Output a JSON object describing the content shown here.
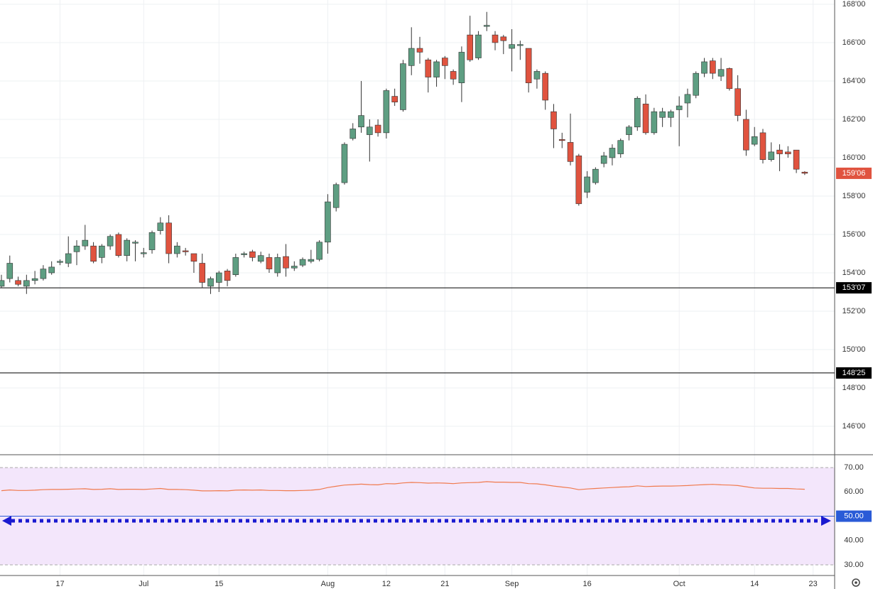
{
  "chart_data": [
    {
      "type": "candlestick",
      "categories": [
        null,
        null,
        null,
        null,
        null,
        null,
        null,
        "17",
        null,
        null,
        null,
        null,
        null,
        null,
        null,
        null,
        null,
        "Jul",
        null,
        null,
        null,
        null,
        null,
        null,
        null,
        null,
        "15",
        null,
        null,
        null,
        null,
        null,
        null,
        null,
        null,
        null,
        null,
        null,
        null,
        "Aug",
        null,
        null,
        null,
        null,
        null,
        null,
        "12",
        null,
        null,
        null,
        null,
        null,
        null,
        "21",
        null,
        null,
        null,
        null,
        null,
        null,
        null,
        "Sep",
        null,
        null,
        null,
        null,
        null,
        null,
        null,
        null,
        "16",
        null,
        null,
        null,
        null,
        null,
        null,
        null,
        null,
        null,
        null,
        "Oct",
        null,
        null,
        null,
        null,
        null,
        null,
        null,
        null,
        "14",
        null,
        null,
        null,
        null,
        null,
        null,
        "23"
      ],
      "open": [
        153.3,
        153.7,
        153.6,
        153.3,
        153.6,
        153.7,
        154.0,
        154.55,
        154.5,
        155.1,
        155.4,
        155.4,
        154.8,
        155.4,
        156.0,
        154.9,
        155.6,
        155.0,
        155.2,
        156.2,
        156.6,
        155.0,
        155.15,
        155.0,
        154.5,
        153.3,
        153.5,
        154.1,
        153.9,
        155.0,
        155.1,
        154.6,
        154.8,
        154.0,
        154.85,
        154.25,
        154.4,
        154.6,
        154.7,
        155.6,
        157.4,
        158.7,
        161.0,
        161.6,
        161.2,
        161.7,
        161.3,
        163.2,
        162.5,
        164.8,
        165.7,
        165.1,
        164.2,
        165.2,
        164.5,
        163.9,
        166.4,
        165.2,
        166.9,
        166.4,
        166.3,
        165.7,
        165.85,
        165.7,
        164.1,
        164.4,
        162.4,
        160.95,
        160.8,
        160.1,
        158.2,
        158.7,
        159.7,
        160.0,
        160.2,
        161.2,
        161.6,
        162.8,
        161.3,
        162.1,
        162.1,
        162.5,
        162.85,
        163.25,
        164.4,
        165.05,
        164.25,
        164.65,
        163.6,
        162.0,
        160.7,
        161.3,
        159.9,
        160.4,
        160.3,
        160.4,
        159.25,
        null
      ],
      "high": [
        153.9,
        154.9,
        153.8,
        153.9,
        154.1,
        154.4,
        154.6,
        154.7,
        155.9,
        155.7,
        156.5,
        155.6,
        155.5,
        156.0,
        156.1,
        155.8,
        155.7,
        155.3,
        156.2,
        156.9,
        157.0,
        155.6,
        155.3,
        155.0,
        155.0,
        153.8,
        154.1,
        154.2,
        155.0,
        155.1,
        155.2,
        155.1,
        155.0,
        155.0,
        155.5,
        154.6,
        154.8,
        155.2,
        155.7,
        158.1,
        158.7,
        160.8,
        161.8,
        164.0,
        162.0,
        162.0,
        163.6,
        163.6,
        165.1,
        166.8,
        166.3,
        165.2,
        165.1,
        165.3,
        164.6,
        165.8,
        167.4,
        166.6,
        167.6,
        166.6,
        166.4,
        166.7,
        166.1,
        165.7,
        164.6,
        164.5,
        162.8,
        161.3,
        162.3,
        160.2,
        159.3,
        159.5,
        160.3,
        160.7,
        161.0,
        161.7,
        163.2,
        163.3,
        162.6,
        162.6,
        162.5,
        163.2,
        163.6,
        164.5,
        165.2,
        165.2,
        165.2,
        164.7,
        164.3,
        162.5,
        161.6,
        161.5,
        160.8,
        160.7,
        160.6,
        160.4,
        159.3,
        null
      ],
      "low": [
        153.2,
        153.5,
        153.3,
        152.9,
        153.4,
        153.6,
        153.9,
        154.4,
        154.3,
        154.4,
        155.2,
        154.5,
        154.5,
        155.2,
        154.8,
        154.6,
        154.6,
        154.8,
        155.0,
        156.0,
        154.5,
        154.8,
        154.9,
        154.0,
        153.2,
        152.9,
        153.0,
        153.3,
        153.8,
        154.8,
        154.6,
        154.5,
        154.0,
        153.8,
        153.8,
        154.1,
        154.3,
        154.5,
        154.6,
        155.0,
        157.2,
        158.6,
        160.9,
        161.3,
        159.8,
        161.1,
        161.0,
        162.7,
        162.4,
        164.3,
        164.9,
        163.4,
        163.7,
        164.1,
        163.8,
        162.9,
        165.0,
        165.1,
        166.6,
        165.6,
        165.4,
        164.5,
        165.1,
        163.4,
        163.6,
        162.5,
        160.5,
        160.5,
        159.6,
        157.5,
        157.9,
        158.6,
        159.5,
        159.6,
        160.0,
        160.9,
        161.4,
        161.2,
        161.2,
        161.6,
        161.6,
        160.6,
        162.1,
        163.1,
        164.2,
        164.1,
        164.0,
        163.5,
        161.9,
        160.1,
        160.6,
        159.7,
        159.8,
        159.3,
        160.0,
        159.2,
        159.1,
        null
      ],
      "close": [
        153.6,
        154.5,
        153.4,
        153.6,
        153.7,
        154.2,
        154.3,
        154.6,
        155.0,
        155.4,
        155.7,
        154.6,
        155.4,
        155.9,
        154.9,
        155.7,
        155.6,
        155.05,
        156.1,
        156.6,
        155.0,
        155.4,
        155.1,
        154.6,
        153.5,
        153.7,
        154.0,
        153.6,
        154.8,
        155.0,
        154.8,
        154.9,
        154.2,
        154.8,
        154.25,
        154.35,
        154.7,
        154.7,
        155.6,
        157.7,
        158.6,
        160.7,
        161.5,
        162.2,
        161.6,
        161.3,
        163.5,
        162.9,
        164.9,
        165.7,
        165.5,
        164.2,
        165.0,
        164.8,
        164.1,
        165.5,
        165.1,
        166.4,
        166.9,
        166.0,
        166.1,
        165.9,
        165.9,
        163.9,
        164.5,
        163.0,
        161.5,
        160.9,
        159.8,
        157.6,
        159.0,
        159.4,
        160.1,
        160.5,
        160.9,
        161.6,
        163.1,
        161.3,
        162.4,
        162.4,
        162.4,
        162.7,
        163.3,
        164.4,
        165.0,
        164.4,
        164.6,
        163.6,
        162.2,
        160.4,
        161.1,
        159.9,
        160.3,
        160.2,
        160.2,
        159.4,
        159.1875,
        null
      ],
      "last_close_label": "159'06",
      "up_color": "#5e9e82",
      "down_color": "#e0533f",
      "last_color": "#e0533f",
      "ylim": [
        144.52,
        168.22
      ],
      "yticks": [
        {
          "value": 146,
          "label": "146'00"
        },
        {
          "value": 148,
          "label": "148'00"
        },
        {
          "value": 150,
          "label": "150'00"
        },
        {
          "value": 152,
          "label": "152'00"
        },
        {
          "value": 154,
          "label": "154'00"
        },
        {
          "value": 156,
          "label": "156'00"
        },
        {
          "value": 158,
          "label": "158'00"
        },
        {
          "value": 160,
          "label": "160'00"
        },
        {
          "value": 162,
          "label": "162'00"
        },
        {
          "value": 164,
          "label": "164'00"
        },
        {
          "value": 166,
          "label": "166'00"
        },
        {
          "value": 168,
          "label": "168'00"
        }
      ],
      "levels": [
        {
          "value": 153.21875,
          "label": "153'07",
          "color": "#000000"
        },
        {
          "value": 148.78125,
          "label": "148'25",
          "color": "#000000"
        }
      ],
      "grid": true
    },
    {
      "type": "line",
      "values": [
        60.5,
        60.8,
        60.6,
        60.6,
        60.7,
        60.9,
        61.0,
        61.0,
        61.1,
        61.2,
        61.3,
        61.0,
        61.1,
        61.3,
        61.0,
        61.1,
        61.1,
        61.0,
        61.2,
        61.4,
        61.0,
        61.0,
        60.9,
        60.7,
        60.4,
        60.4,
        60.5,
        60.4,
        60.7,
        60.8,
        60.7,
        60.8,
        60.6,
        60.6,
        60.5,
        60.5,
        60.6,
        60.7,
        61.0,
        61.8,
        62.3,
        62.8,
        63.0,
        63.2,
        63.0,
        62.9,
        63.4,
        63.3,
        63.7,
        63.9,
        63.8,
        63.6,
        63.7,
        63.6,
        63.4,
        63.7,
        63.8,
        63.9,
        64.2,
        64.0,
        64.0,
        63.9,
        63.9,
        63.4,
        63.3,
        62.9,
        62.4,
        62.0,
        61.6,
        60.9,
        61.2,
        61.4,
        61.6,
        61.8,
        62.0,
        62.1,
        62.5,
        62.2,
        62.3,
        62.4,
        62.4,
        62.5,
        62.6,
        62.8,
        63.0,
        63.1,
        62.9,
        62.8,
        62.6,
        62.1,
        61.6,
        61.5,
        61.5,
        61.4,
        61.4,
        61.2,
        61.1,
        null
      ],
      "color": "#f07a4e",
      "ylim": [
        25.6,
        75
      ],
      "yticks": [
        {
          "value": 30,
          "label": "30.00"
        },
        {
          "value": 40,
          "label": "40.00"
        },
        {
          "value": 60,
          "label": "60.00"
        },
        {
          "value": 70,
          "label": "70.00"
        }
      ],
      "levels": [
        {
          "value": 50,
          "label": "50.00",
          "color": "#2a5bd7"
        }
      ],
      "band_color": "#f3e6fb",
      "grid": true
    }
  ]
}
